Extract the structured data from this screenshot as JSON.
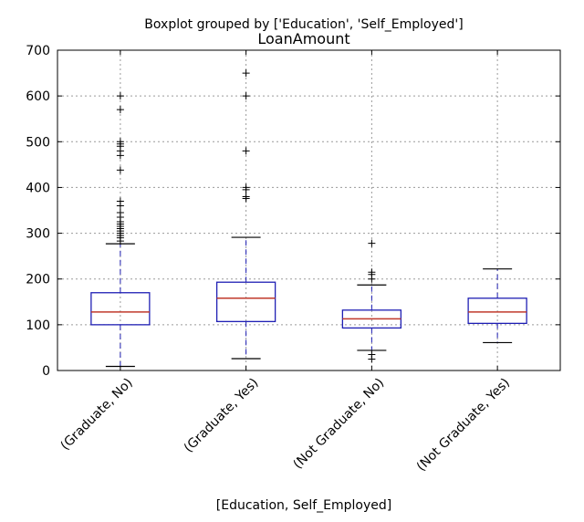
{
  "chart_data": {
    "type": "boxplot",
    "suptitle": "Boxplot grouped by ['Education', 'Self_Employed']",
    "title": "LoanAmount",
    "xlabel": "[Education, Self_Employed]",
    "ylabel": "",
    "ylim": [
      0,
      700
    ],
    "yticks": [
      0,
      100,
      200,
      300,
      400,
      500,
      600,
      700
    ],
    "grid": true,
    "categories": [
      "(Graduate, No)",
      "(Graduate, Yes)",
      "(Not Graduate, No)",
      "(Not Graduate, Yes)"
    ],
    "boxes": [
      {
        "whisker_low": 9,
        "q1": 100,
        "median": 128,
        "q3": 170,
        "whisker_high": 277,
        "outliers": [
          283,
          290,
          295,
          300,
          305,
          310,
          315,
          320,
          325,
          335,
          345,
          360,
          370,
          438,
          470,
          480,
          490,
          495,
          500,
          570,
          600
        ]
      },
      {
        "whisker_low": 26,
        "q1": 107,
        "median": 158,
        "q3": 193,
        "whisker_high": 291,
        "outliers": [
          376,
          380,
          395,
          400,
          480,
          600,
          650
        ]
      },
      {
        "whisker_low": 44,
        "q1": 93,
        "median": 113,
        "q3": 132,
        "whisker_high": 187,
        "outliers": [
          25,
          35,
          200,
          210,
          215,
          278
        ]
      },
      {
        "whisker_low": 61,
        "q1": 103,
        "median": 128,
        "q3": 158,
        "whisker_high": 222,
        "outliers": []
      }
    ],
    "colors": {
      "box": "#1f1fb4",
      "median": "#c0392b",
      "grid": "#9a9a9a",
      "whisker": "#1f1fb4",
      "flier": "#000000"
    }
  }
}
